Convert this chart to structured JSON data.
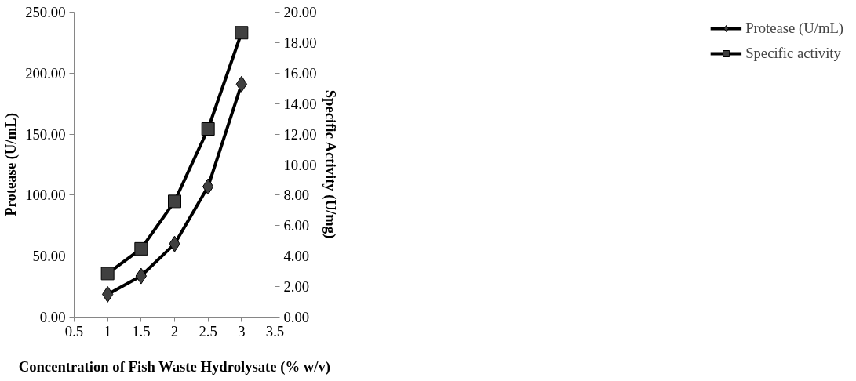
{
  "chart_data": {
    "type": "line",
    "xlabel": "Concentration of Fish Waste Hydrolysate (% w/v)",
    "ylabel": "Protease (U/mL)",
    "y2label": "Specific Activity (U/mg)",
    "x": [
      1,
      1.5,
      2,
      2.5,
      3
    ],
    "series": [
      {
        "name": "Protease (U/mL)",
        "color": "#000000",
        "marker": "diamond",
        "values": [
          18.7,
          33.7,
          60,
          107,
          191
        ]
      },
      {
        "name": "Specific activity",
        "color": "#000000",
        "marker": "square",
        "axis": "y2",
        "values": [
          2.86,
          4.48,
          7.59,
          12.34,
          18.65
        ]
      }
    ],
    "xlim": [
      0.5,
      3.5
    ],
    "xticks": [
      0.5,
      1,
      1.5,
      2,
      2.5,
      3,
      3.5
    ],
    "ylim": [
      0,
      250
    ],
    "yticks": [
      {
        "value": 0,
        "label": "0.00"
      },
      {
        "value": 50,
        "label": "50.00"
      },
      {
        "value": 100,
        "label": "100.00"
      },
      {
        "value": 150,
        "label": "150.00"
      },
      {
        "value": 200,
        "label": "200.00"
      },
      {
        "value": 250,
        "label": "250.00"
      }
    ],
    "y2lim": [
      0,
      20
    ],
    "y2ticks": [
      {
        "value": 0,
        "label": "0.00"
      },
      {
        "value": 2,
        "label": "2.00"
      },
      {
        "value": 4,
        "label": "4.00"
      },
      {
        "value": 6,
        "label": "6.00"
      },
      {
        "value": 8,
        "label": "8.00"
      },
      {
        "value": 10,
        "label": "10.00"
      },
      {
        "value": 12,
        "label": "12.00"
      },
      {
        "value": 14,
        "label": "14.00"
      },
      {
        "value": 16,
        "label": "16.00"
      },
      {
        "value": 18,
        "label": "18.00"
      },
      {
        "value": 20,
        "label": "20.00"
      }
    ],
    "grid": false,
    "legend": "right",
    "line_style": "solid"
  }
}
